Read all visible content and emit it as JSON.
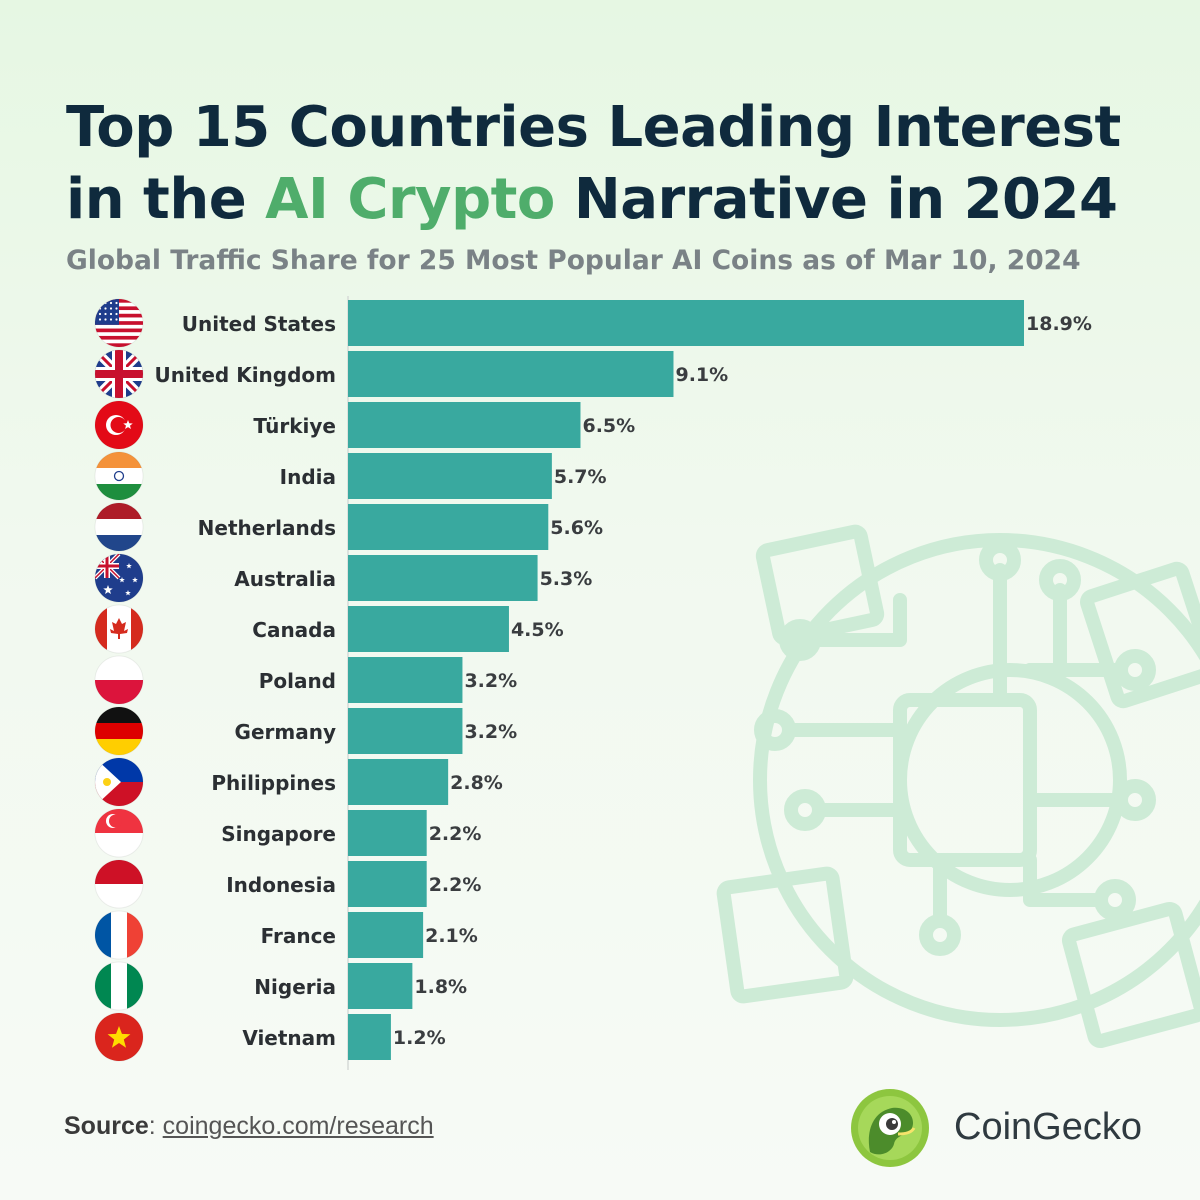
{
  "title": {
    "line1": "Top 15 Countries Leading Interest",
    "line2_pre": "in the ",
    "line2_highlight": "AI Crypto",
    "line2_post": " Narrative in 2024"
  },
  "subtitle": "Global Traffic Share for 25 Most Popular AI Coins as of Mar 10, 2024",
  "source": {
    "label": "Source",
    "link": "coingecko.com/research"
  },
  "brand": {
    "name": "CoinGecko"
  },
  "colors": {
    "bar": "#39a99f",
    "title": "#0f2a3d",
    "highlight": "#4fad6b",
    "subtitle": "#7a8286"
  },
  "chart_data": {
    "type": "bar",
    "orientation": "horizontal",
    "categories": [
      "United States",
      "United Kingdom",
      "Türkiye",
      "India",
      "Netherlands",
      "Australia",
      "Canada",
      "Poland",
      "Germany",
      "Philippines",
      "Singapore",
      "Indonesia",
      "France",
      "Nigeria",
      "Vietnam"
    ],
    "values": [
      18.9,
      9.1,
      6.5,
      5.7,
      5.6,
      5.3,
      4.5,
      3.2,
      3.2,
      2.8,
      2.2,
      2.2,
      2.1,
      1.8,
      1.2
    ],
    "value_labels": [
      "18.9%",
      "9.1%",
      "6.5%",
      "5.7%",
      "5.6%",
      "5.3%",
      "4.5%",
      "3.2%",
      "3.2%",
      "2.8%",
      "2.2%",
      "2.2%",
      "2.1%",
      "1.8%",
      "1.2%"
    ],
    "flags": [
      "us-flag-icon",
      "uk-flag-icon",
      "turkey-flag-icon",
      "india-flag-icon",
      "netherlands-flag-icon",
      "australia-flag-icon",
      "canada-flag-icon",
      "poland-flag-icon",
      "germany-flag-icon",
      "philippines-flag-icon",
      "singapore-flag-icon",
      "indonesia-flag-icon",
      "france-flag-icon",
      "nigeria-flag-icon",
      "vietnam-flag-icon"
    ],
    "unit": "%",
    "xlim": [
      0,
      18.9
    ],
    "grid": false,
    "legend": "none"
  }
}
